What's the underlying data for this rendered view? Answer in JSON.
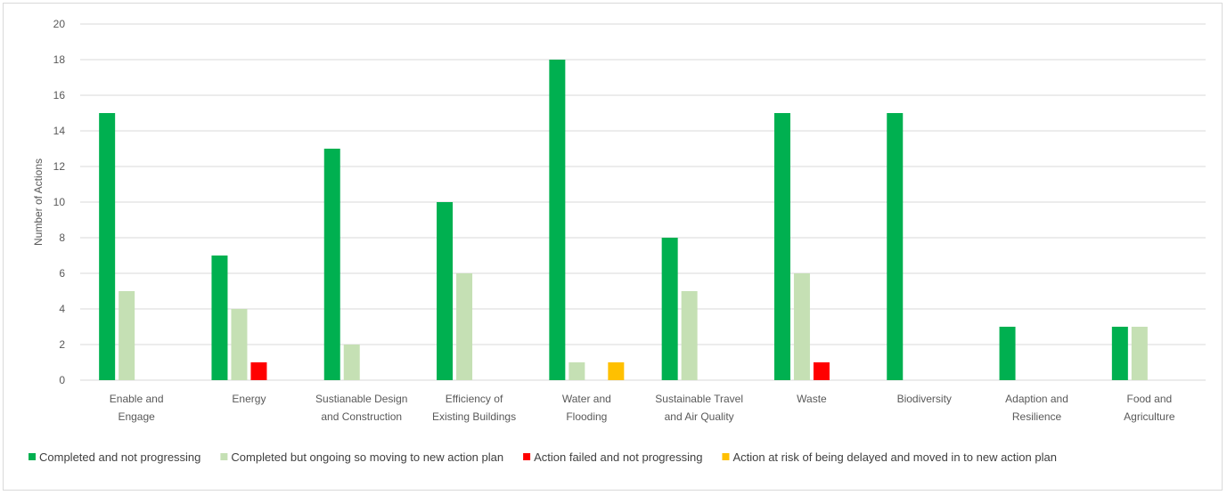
{
  "chart_data": {
    "type": "bar",
    "title": "",
    "xlabel": "",
    "ylabel": "Number of Actions",
    "ylim": [
      0,
      20
    ],
    "yticks": [
      "0",
      "2",
      "4",
      "6",
      "8",
      "10",
      "12",
      "14",
      "16",
      "18",
      "20"
    ],
    "grid": true,
    "legend_position": "bottom",
    "categories": [
      [
        "Enable and",
        "Engage"
      ],
      [
        "Energy"
      ],
      [
        "Sustianable Design",
        "and Construction"
      ],
      [
        "Efficiency of",
        "Existing Buildings"
      ],
      [
        "Water and",
        "Flooding"
      ],
      [
        "Sustainable Travel",
        "and Air Quality"
      ],
      [
        "Waste"
      ],
      [
        "Biodiversity"
      ],
      [
        "Adaption and",
        "Resilience"
      ],
      [
        "Food and",
        "Agriculture"
      ]
    ],
    "series": [
      {
        "name": "Completed and not progressing",
        "color": "#00b050",
        "values": [
          15,
          7,
          13,
          10,
          18,
          8,
          15,
          15,
          3,
          3
        ]
      },
      {
        "name": "Completed but ongoing so moving to new action plan",
        "color": "#c5e0b4",
        "values": [
          5,
          4,
          2,
          6,
          1,
          5,
          6,
          0,
          0,
          3
        ]
      },
      {
        "name": "Action failed and not progressing",
        "color": "#ff0000",
        "values": [
          0,
          1,
          0,
          0,
          0,
          0,
          1,
          0,
          0,
          0
        ]
      },
      {
        "name": "Action at risk of being delayed and moved in to new action plan",
        "color": "#ffc000",
        "values": [
          0,
          0,
          0,
          0,
          1,
          0,
          0,
          0,
          0,
          0
        ]
      }
    ]
  }
}
